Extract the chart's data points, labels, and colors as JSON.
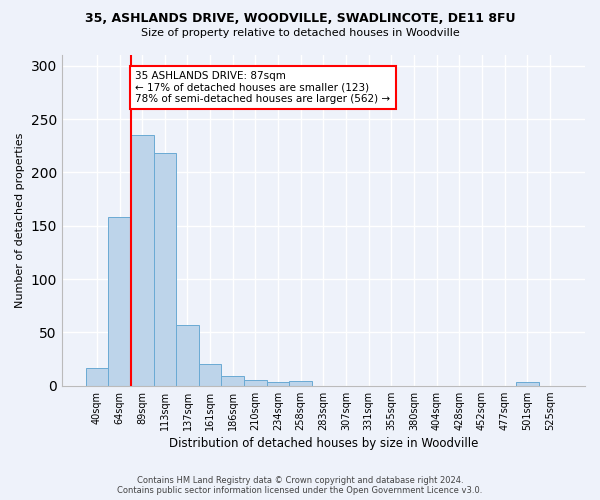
{
  "title1": "35, ASHLANDS DRIVE, WOODVILLE, SWADLINCOTE, DE11 8FU",
  "title2": "Size of property relative to detached houses in Woodville",
  "xlabel": "Distribution of detached houses by size in Woodville",
  "ylabel": "Number of detached properties",
  "footer1": "Contains HM Land Registry data © Crown copyright and database right 2024.",
  "footer2": "Contains public sector information licensed under the Open Government Licence v3.0.",
  "bar_labels": [
    "40sqm",
    "64sqm",
    "89sqm",
    "113sqm",
    "137sqm",
    "161sqm",
    "186sqm",
    "210sqm",
    "234sqm",
    "258sqm",
    "283sqm",
    "307sqm",
    "331sqm",
    "355sqm",
    "380sqm",
    "404sqm",
    "428sqm",
    "452sqm",
    "477sqm",
    "501sqm",
    "525sqm"
  ],
  "bar_values": [
    17,
    158,
    235,
    218,
    57,
    20,
    9,
    5,
    3,
    4,
    0,
    0,
    0,
    0,
    0,
    0,
    0,
    0,
    0,
    3,
    0
  ],
  "bar_color": "#bdd4ea",
  "bar_edgecolor": "#6aaad4",
  "ylim": [
    0,
    310
  ],
  "yticks": [
    0,
    50,
    100,
    150,
    200,
    250,
    300
  ],
  "property_line_x": 2,
  "annotation_text": "35 ASHLANDS DRIVE: 87sqm\n← 17% of detached houses are smaller (123)\n78% of semi-detached houses are larger (562) →",
  "annotation_box_color": "white",
  "annotation_box_edgecolor": "red",
  "vline_color": "red",
  "background_color": "#eef2fa"
}
